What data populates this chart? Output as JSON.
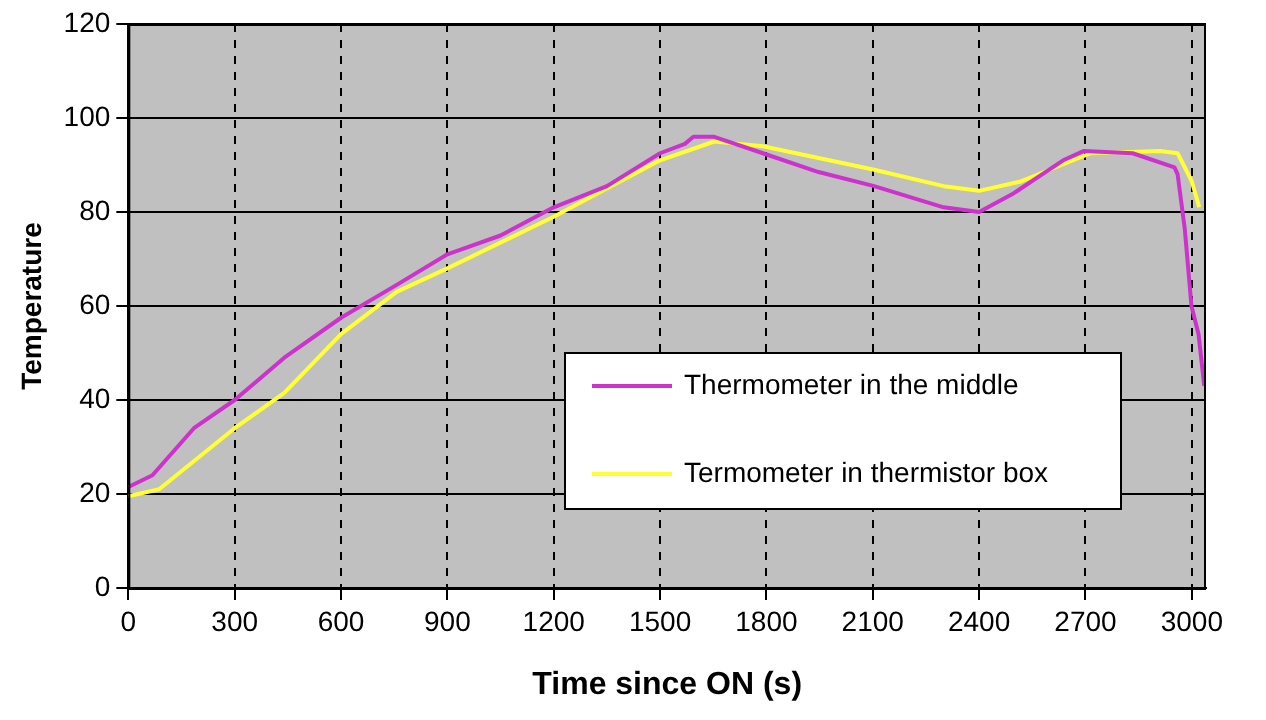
{
  "chart_data": {
    "type": "line",
    "xlabel": "Time since ON (s)",
    "ylabel": "Temperature",
    "xlim": [
      0,
      3040
    ],
    "xticks": [
      0,
      300,
      600,
      900,
      1200,
      1500,
      1800,
      2100,
      2400,
      2700,
      3000
    ],
    "ylim": [
      0,
      120
    ],
    "yticks": [
      0,
      20,
      40,
      60,
      80,
      100,
      120
    ],
    "grid": true,
    "legend": "bottom right",
    "marker": "none",
    "line_style": "solid",
    "series": [
      {
        "name": "Thermometer in the middle",
        "color": "#cc33cc",
        "x": [
          0,
          68,
          185,
          300,
          440,
          600,
          757,
          900,
          1050,
          1200,
          1350,
          1500,
          1570,
          1594,
          1653,
          1790,
          1947,
          2104,
          2300,
          2400,
          2498,
          2637,
          2696,
          2833,
          2951,
          2960,
          2980,
          2999,
          3019,
          3035
        ],
        "values": [
          21.5,
          24,
          34,
          40,
          49,
          57.5,
          64.5,
          71,
          75,
          81,
          85.5,
          92.5,
          94.5,
          96,
          96,
          92.5,
          88.5,
          85.5,
          81,
          80,
          84,
          91,
          93,
          92.5,
          89.5,
          88,
          76.5,
          60,
          54,
          43
        ]
      },
      {
        "name": "Termometer in thermistor box",
        "color": "#ffff33",
        "x": [
          0,
          87,
          300,
          440,
          600,
          757,
          900,
          1200,
          1500,
          1653,
          1790,
          1947,
          2104,
          2300,
          2400,
          2518,
          2714,
          2910,
          2960,
          3000,
          3021
        ],
        "values": [
          19.5,
          21,
          34,
          41.5,
          54,
          63,
          68,
          79,
          91,
          95,
          94,
          91.5,
          89,
          85.5,
          84.5,
          86.5,
          92.5,
          93,
          92.5,
          86.5,
          81
        ]
      }
    ]
  }
}
